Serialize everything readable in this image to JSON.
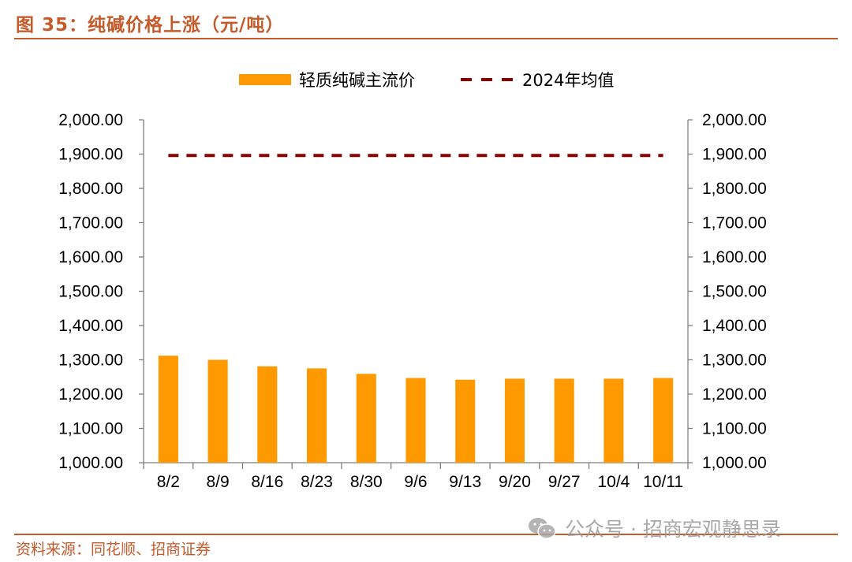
{
  "header": {
    "title": "图 35：纯碱价格上涨（元/吨）"
  },
  "footer": {
    "source": "资料来源：同花顺、招商证券",
    "watermark": "公众号 · 招商宏观静思录"
  },
  "colors": {
    "bar": "#ff9900",
    "line": "#8b0000",
    "accent": "#c55a2b"
  },
  "chart_data": {
    "type": "bar",
    "title": "纯碱价格上涨（元/吨）",
    "categories": [
      "8/2",
      "8/9",
      "8/16",
      "8/23",
      "8/30",
      "9/6",
      "9/13",
      "9/20",
      "9/27",
      "10/4",
      "10/11"
    ],
    "series": [
      {
        "name": "轻质纯碱主流价",
        "type": "bar",
        "axis": "left",
        "values": [
          1312,
          1300,
          1281,
          1275,
          1259,
          1247,
          1242,
          1245,
          1245,
          1245,
          1247
        ]
      },
      {
        "name": "2024年均值",
        "type": "line",
        "style": "dashed",
        "axis": "right",
        "values": [
          1896,
          1896,
          1896,
          1896,
          1896,
          1896,
          1896,
          1896,
          1896,
          1896,
          1896
        ]
      }
    ],
    "ylim": [
      1000,
      2000
    ],
    "y_ticks": [
      "1,000.00",
      "1,100.00",
      "1,200.00",
      "1,300.00",
      "1,400.00",
      "1,500.00",
      "1,600.00",
      "1,700.00",
      "1,800.00",
      "1,900.00",
      "2,000.00"
    ],
    "y2lim": [
      1000,
      2000
    ],
    "legend": {
      "position": "top"
    },
    "grid": false,
    "xlabel": "",
    "ylabel": ""
  }
}
